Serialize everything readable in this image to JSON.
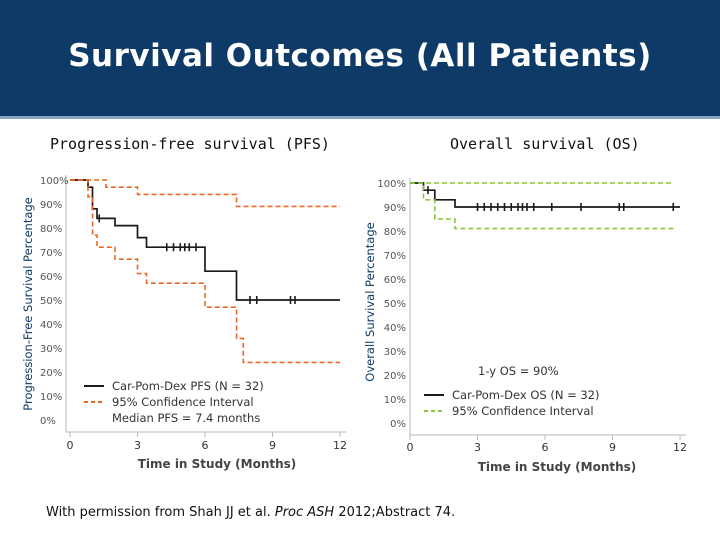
{
  "slide": {
    "title": "Survival Outcomes (All Patients)",
    "footer_pre": "With permission from Shah JJ et al. ",
    "footer_journal": "Proc ASH",
    "footer_post": " 2012;Abstract 74."
  },
  "colors": {
    "header": "#0e3a68",
    "curve": "#1a1a1a",
    "pfs_ci": "#e86a25",
    "os_ci": "#8cc63f"
  },
  "chart_data": [
    {
      "type": "line",
      "panel_title": "Progression-free survival (PFS)",
      "ylabel": "Progression-Free Survival Percentage",
      "xlabel": "Time in Study (Months)",
      "xlim": [
        0,
        12
      ],
      "ylim": [
        0,
        100
      ],
      "x_ticks": [
        "0",
        "3",
        "6",
        "9",
        "12"
      ],
      "y_ticks": [
        "0%",
        "10%",
        "20%",
        "30%",
        "40%",
        "50%",
        "60%",
        "70%",
        "80%",
        "90%",
        "100%"
      ],
      "legend": {
        "position": "bottom-left",
        "entries": [
          "Car-Pom-Dex PFS (N = 32)",
          "95% Confidence Interval"
        ],
        "note": "Median PFS = 7.4 months"
      },
      "series": [
        {
          "name": "Car-Pom-Dex PFS (N = 32)",
          "style": "solid",
          "points": [
            [
              0,
              100
            ],
            [
              0.8,
              100
            ],
            [
              0.8,
              97
            ],
            [
              1.0,
              97
            ],
            [
              1.0,
              88
            ],
            [
              1.2,
              88
            ],
            [
              1.2,
              84
            ],
            [
              2.0,
              84
            ],
            [
              2.0,
              81
            ],
            [
              3.0,
              81
            ],
            [
              3.0,
              76
            ],
            [
              3.4,
              76
            ],
            [
              3.4,
              72
            ],
            [
              6.0,
              72
            ],
            [
              6.0,
              62
            ],
            [
              7.4,
              62
            ],
            [
              7.4,
              50
            ],
            [
              12,
              50
            ]
          ],
          "censor_x": [
            1.3,
            4.3,
            4.6,
            4.9,
            5.1,
            5.3,
            5.6,
            8.0,
            8.3,
            9.8,
            10.0
          ]
        },
        {
          "name": "95% CI upper",
          "style": "dashed",
          "points": [
            [
              0,
              100
            ],
            [
              1.6,
              100
            ],
            [
              1.6,
              97
            ],
            [
              3.0,
              97
            ],
            [
              3.0,
              94
            ],
            [
              7.4,
              94
            ],
            [
              7.4,
              89
            ],
            [
              12,
              89
            ]
          ]
        },
        {
          "name": "95% CI lower",
          "style": "dashed",
          "points": [
            [
              0,
              100
            ],
            [
              0.8,
              100
            ],
            [
              0.8,
              93
            ],
            [
              1.0,
              93
            ],
            [
              1.0,
              77
            ],
            [
              1.2,
              77
            ],
            [
              1.2,
              72
            ],
            [
              2.0,
              72
            ],
            [
              2.0,
              67
            ],
            [
              3.0,
              67
            ],
            [
              3.0,
              61
            ],
            [
              3.4,
              61
            ],
            [
              3.4,
              57
            ],
            [
              6.0,
              57
            ],
            [
              6.0,
              47
            ],
            [
              7.4,
              47
            ],
            [
              7.4,
              34
            ],
            [
              7.7,
              34
            ],
            [
              7.7,
              24
            ],
            [
              12,
              24
            ]
          ]
        }
      ]
    },
    {
      "type": "line",
      "panel_title": "Overall survival (OS)",
      "ylabel": "Overall Survival Percentage",
      "xlabel": "Time in Study (Months)",
      "xlim": [
        0,
        12
      ],
      "ylim": [
        0,
        100
      ],
      "x_ticks": [
        "0",
        "3",
        "6",
        "9",
        "12"
      ],
      "y_ticks": [
        "0%",
        "10%",
        "20%",
        "30%",
        "40%",
        "50%",
        "60%",
        "70%",
        "80%",
        "90%",
        "100%"
      ],
      "annotation": "1-y OS = 90%",
      "legend": {
        "position": "bottom-left",
        "entries": [
          "Car-Pom-Dex OS (N = 32)",
          "95% Confidence Interval"
        ]
      },
      "series": [
        {
          "name": "Car-Pom-Dex OS (N = 32)",
          "style": "solid",
          "points": [
            [
              0,
              100
            ],
            [
              0.6,
              100
            ],
            [
              0.6,
              97
            ],
            [
              1.1,
              97
            ],
            [
              1.1,
              93
            ],
            [
              2.0,
              93
            ],
            [
              2.0,
              90
            ],
            [
              12,
              90
            ]
          ],
          "censor_x": [
            0.8,
            3.0,
            3.3,
            3.6,
            3.9,
            4.2,
            4.5,
            4.8,
            5.0,
            5.2,
            5.5,
            6.3,
            7.6,
            9.3,
            9.5,
            11.7
          ]
        },
        {
          "name": "95% CI upper",
          "style": "dashed",
          "points": [
            [
              0,
              100
            ],
            [
              11.7,
              100
            ]
          ]
        },
        {
          "name": "95% CI lower",
          "style": "dashed",
          "points": [
            [
              0,
              100
            ],
            [
              0.6,
              100
            ],
            [
              0.6,
              93
            ],
            [
              1.1,
              93
            ],
            [
              1.1,
              85
            ],
            [
              2.0,
              85
            ],
            [
              2.0,
              81
            ],
            [
              11.7,
              81
            ]
          ]
        }
      ]
    }
  ]
}
